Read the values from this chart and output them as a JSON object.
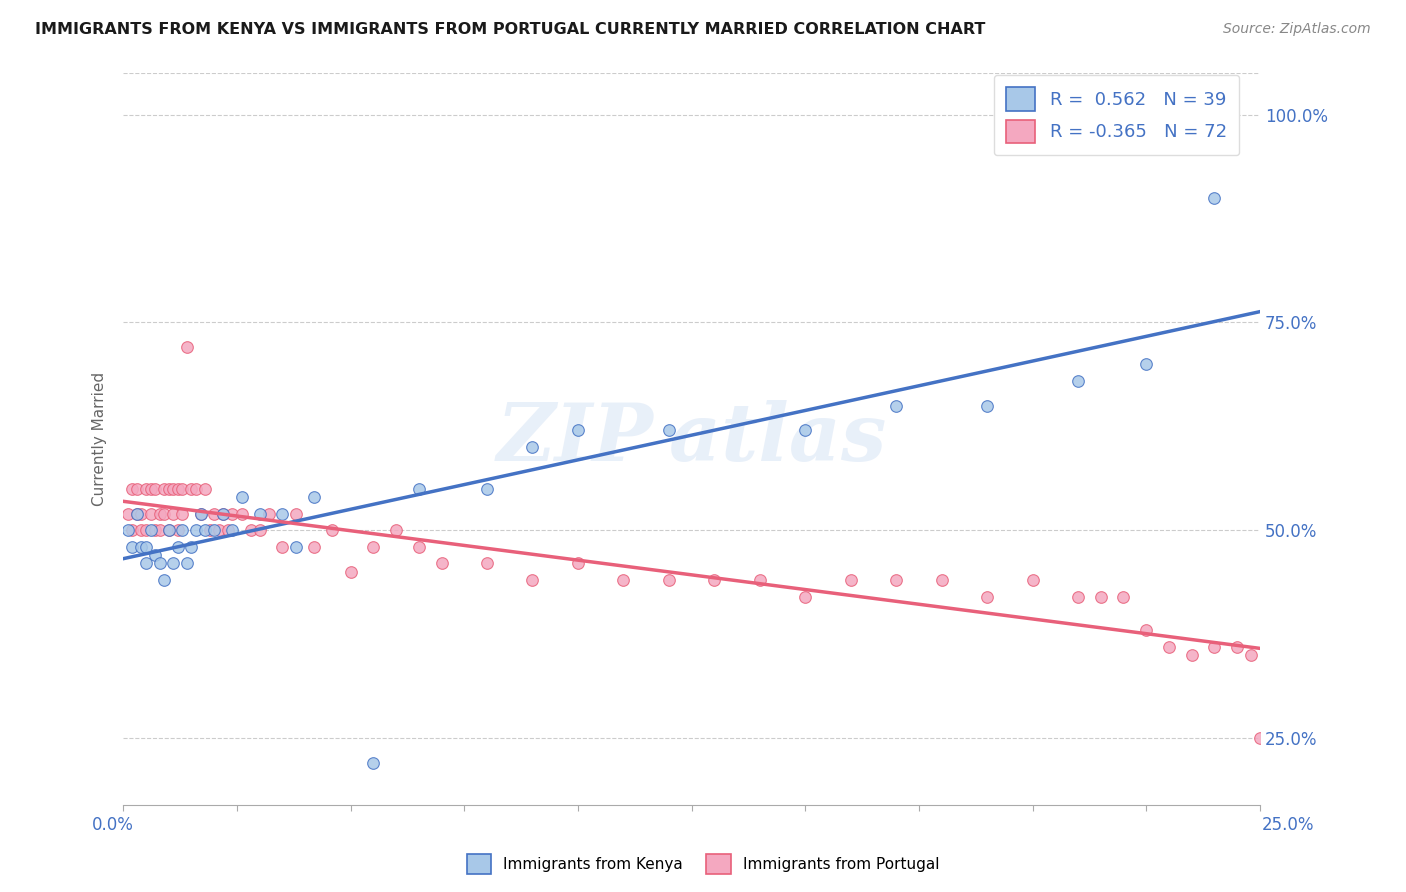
{
  "title": "IMMIGRANTS FROM KENYA VS IMMIGRANTS FROM PORTUGAL CURRENTLY MARRIED CORRELATION CHART",
  "source": "Source: ZipAtlas.com",
  "ylabel": "Currently Married",
  "xlim": [
    0.0,
    0.25
  ],
  "ylim": [
    0.17,
    1.05
  ],
  "ytick_values": [
    0.25,
    0.5,
    0.75,
    1.0
  ],
  "ytick_labels": [
    "25.0%",
    "50.0%",
    "75.0%",
    "100.0%"
  ],
  "kenya_R": 0.562,
  "kenya_N": 39,
  "portugal_R": -0.365,
  "portugal_N": 72,
  "kenya_color": "#a8c8e8",
  "portugal_color": "#f4a8c0",
  "kenya_line_color": "#4472c4",
  "portugal_line_color": "#e8607a",
  "kenya_scatter_x": [
    0.001,
    0.002,
    0.003,
    0.004,
    0.005,
    0.005,
    0.006,
    0.007,
    0.008,
    0.009,
    0.01,
    0.011,
    0.012,
    0.013,
    0.014,
    0.015,
    0.016,
    0.017,
    0.018,
    0.02,
    0.022,
    0.024,
    0.026,
    0.03,
    0.035,
    0.038,
    0.042,
    0.055,
    0.065,
    0.08,
    0.09,
    0.1,
    0.12,
    0.15,
    0.17,
    0.19,
    0.21,
    0.225,
    0.24
  ],
  "kenya_scatter_y": [
    0.5,
    0.48,
    0.52,
    0.48,
    0.48,
    0.46,
    0.5,
    0.47,
    0.46,
    0.44,
    0.5,
    0.46,
    0.48,
    0.5,
    0.46,
    0.48,
    0.5,
    0.52,
    0.5,
    0.5,
    0.52,
    0.5,
    0.54,
    0.52,
    0.52,
    0.48,
    0.54,
    0.22,
    0.55,
    0.55,
    0.6,
    0.62,
    0.62,
    0.62,
    0.65,
    0.65,
    0.68,
    0.7,
    0.9
  ],
  "portugal_scatter_x": [
    0.001,
    0.002,
    0.002,
    0.003,
    0.003,
    0.004,
    0.004,
    0.005,
    0.005,
    0.006,
    0.006,
    0.007,
    0.007,
    0.008,
    0.008,
    0.009,
    0.009,
    0.01,
    0.01,
    0.011,
    0.011,
    0.012,
    0.012,
    0.013,
    0.013,
    0.014,
    0.015,
    0.016,
    0.017,
    0.018,
    0.019,
    0.02,
    0.021,
    0.022,
    0.023,
    0.024,
    0.026,
    0.028,
    0.03,
    0.032,
    0.035,
    0.038,
    0.042,
    0.046,
    0.05,
    0.055,
    0.06,
    0.065,
    0.07,
    0.08,
    0.09,
    0.1,
    0.11,
    0.12,
    0.13,
    0.14,
    0.15,
    0.16,
    0.17,
    0.18,
    0.19,
    0.2,
    0.21,
    0.215,
    0.22,
    0.225,
    0.23,
    0.235,
    0.24,
    0.245,
    0.248,
    0.25
  ],
  "portugal_scatter_y": [
    0.52,
    0.55,
    0.5,
    0.55,
    0.52,
    0.52,
    0.5,
    0.55,
    0.5,
    0.55,
    0.52,
    0.55,
    0.5,
    0.52,
    0.5,
    0.55,
    0.52,
    0.55,
    0.5,
    0.55,
    0.52,
    0.55,
    0.5,
    0.52,
    0.55,
    0.72,
    0.55,
    0.55,
    0.52,
    0.55,
    0.5,
    0.52,
    0.5,
    0.52,
    0.5,
    0.52,
    0.52,
    0.5,
    0.5,
    0.52,
    0.48,
    0.52,
    0.48,
    0.5,
    0.45,
    0.48,
    0.5,
    0.48,
    0.46,
    0.46,
    0.44,
    0.46,
    0.44,
    0.44,
    0.44,
    0.44,
    0.42,
    0.44,
    0.44,
    0.44,
    0.42,
    0.44,
    0.42,
    0.42,
    0.42,
    0.38,
    0.36,
    0.35,
    0.36,
    0.36,
    0.35,
    0.25
  ]
}
